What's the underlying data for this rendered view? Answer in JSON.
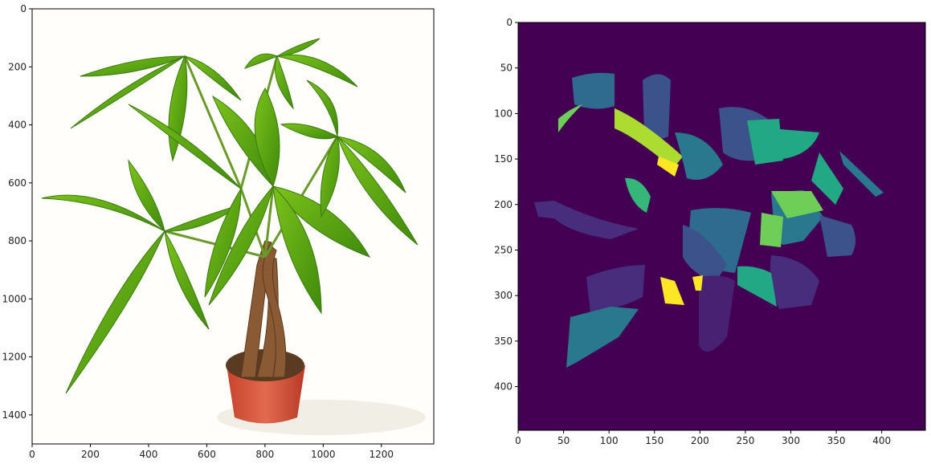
{
  "figure": {
    "left_panel": {
      "title": "",
      "x_ticks": [
        "0",
        "200",
        "400",
        "600",
        "800",
        "1000",
        "1200"
      ],
      "y_ticks": [
        "0",
        "200",
        "400",
        "600",
        "800",
        "1000",
        "1200",
        "1400"
      ],
      "x_tick_values": [
        0,
        200,
        400,
        600,
        800,
        1000,
        1200
      ],
      "y_tick_values": [
        0,
        200,
        400,
        600,
        800,
        1000,
        1200,
        1400
      ],
      "xlim": [
        0,
        1380
      ],
      "ylim": [
        1500,
        0
      ],
      "content": "photo of potted plant"
    },
    "right_panel": {
      "title": "",
      "x_ticks": [
        "0",
        "50",
        "100",
        "150",
        "200",
        "250",
        "300",
        "350",
        "400"
      ],
      "y_ticks": [
        "0",
        "50",
        "100",
        "150",
        "200",
        "250",
        "300",
        "350",
        "400"
      ],
      "x_tick_values": [
        0,
        50,
        100,
        150,
        200,
        250,
        300,
        350,
        400
      ],
      "y_tick_values": [
        0,
        50,
        100,
        150,
        200,
        250,
        300,
        350,
        400
      ],
      "xlim": [
        0,
        448
      ],
      "ylim": [
        448,
        0
      ],
      "content": "segmentation mask",
      "background_color": "#440154"
    }
  }
}
